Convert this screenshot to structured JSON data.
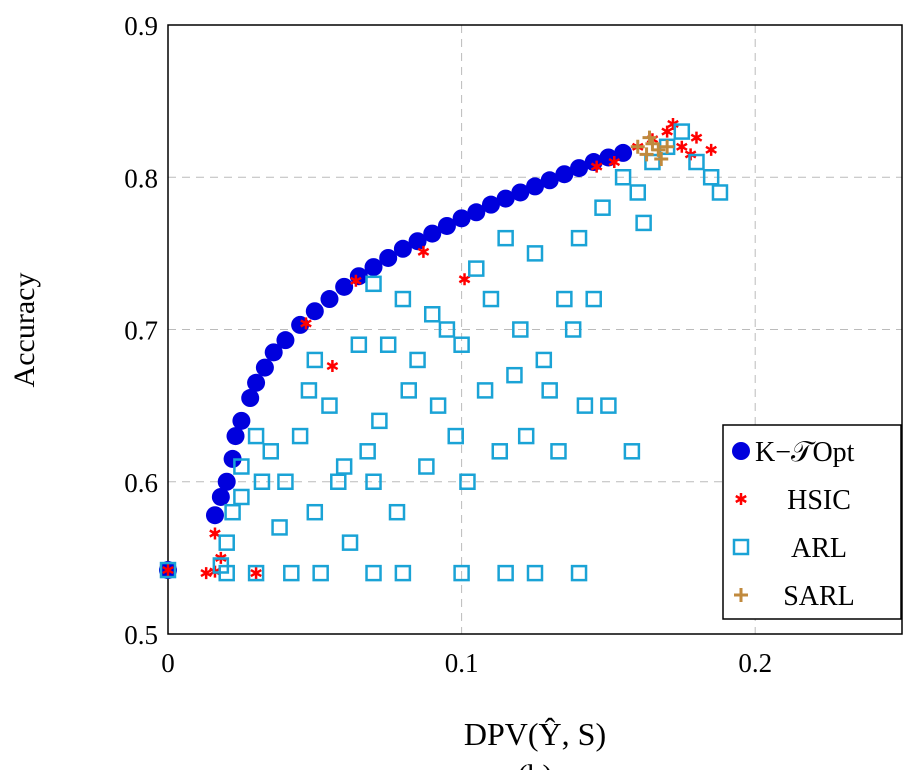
{
  "chart_data": {
    "type": "scatter",
    "ylabel": "Accuracy",
    "xlabel": "DPV(Ŷ, S)",
    "caption": "(b)",
    "xlim": [
      0,
      0.25
    ],
    "ylim": [
      0.5,
      0.9
    ],
    "xticks": [
      0,
      0.1,
      0.2
    ],
    "yticks": [
      0.5,
      0.6,
      0.7,
      0.8,
      0.9
    ],
    "grid": true,
    "legend": "lower right",
    "series": [
      {
        "name": "K−𝒯Opt",
        "color": "#0000dd",
        "marker": "circle",
        "x": [
          0.0,
          0.016,
          0.018,
          0.02,
          0.022,
          0.023,
          0.025,
          0.028,
          0.03,
          0.033,
          0.036,
          0.04,
          0.045,
          0.05,
          0.055,
          0.06,
          0.065,
          0.07,
          0.075,
          0.08,
          0.085,
          0.09,
          0.095,
          0.1,
          0.105,
          0.11,
          0.115,
          0.12,
          0.125,
          0.13,
          0.135,
          0.14,
          0.145,
          0.15,
          0.155
        ],
        "values": [
          0.542,
          0.578,
          0.59,
          0.6,
          0.615,
          0.63,
          0.64,
          0.655,
          0.665,
          0.675,
          0.685,
          0.693,
          0.703,
          0.712,
          0.72,
          0.728,
          0.735,
          0.741,
          0.747,
          0.753,
          0.758,
          0.763,
          0.768,
          0.773,
          0.777,
          0.782,
          0.786,
          0.79,
          0.794,
          0.798,
          0.802,
          0.806,
          0.81,
          0.813,
          0.816
        ]
      },
      {
        "name": "HSIC",
        "color": "#ff0000",
        "marker": "star",
        "x": [
          0.0,
          0.013,
          0.016,
          0.016,
          0.018,
          0.03,
          0.047,
          0.056,
          0.064,
          0.087,
          0.101,
          0.146,
          0.152,
          0.16,
          0.165,
          0.17,
          0.175,
          0.18,
          0.185,
          0.172,
          0.178
        ],
        "values": [
          0.542,
          0.54,
          0.541,
          0.566,
          0.55,
          0.54,
          0.704,
          0.676,
          0.732,
          0.751,
          0.733,
          0.807,
          0.81,
          0.82,
          0.825,
          0.83,
          0.82,
          0.826,
          0.818,
          0.835,
          0.815
        ]
      },
      {
        "name": "ARL",
        "color": "#1aa3d6",
        "marker": "square",
        "x": [
          0.0,
          0.018,
          0.02,
          0.022,
          0.025,
          0.025,
          0.03,
          0.032,
          0.035,
          0.038,
          0.04,
          0.042,
          0.045,
          0.048,
          0.05,
          0.05,
          0.052,
          0.055,
          0.058,
          0.06,
          0.062,
          0.065,
          0.068,
          0.07,
          0.07,
          0.072,
          0.075,
          0.078,
          0.08,
          0.082,
          0.085,
          0.088,
          0.09,
          0.092,
          0.095,
          0.098,
          0.1,
          0.102,
          0.105,
          0.108,
          0.11,
          0.113,
          0.115,
          0.118,
          0.12,
          0.122,
          0.125,
          0.128,
          0.13,
          0.133,
          0.135,
          0.138,
          0.14,
          0.142,
          0.145,
          0.148,
          0.15,
          0.155,
          0.158,
          0.16,
          0.162,
          0.165,
          0.17,
          0.175,
          0.18,
          0.185,
          0.188,
          0.07,
          0.08,
          0.1,
          0.115,
          0.125,
          0.14,
          0.02,
          0.03
        ],
        "values": [
          0.542,
          0.545,
          0.56,
          0.58,
          0.59,
          0.61,
          0.63,
          0.6,
          0.62,
          0.57,
          0.6,
          0.54,
          0.63,
          0.66,
          0.58,
          0.68,
          0.54,
          0.65,
          0.6,
          0.61,
          0.56,
          0.69,
          0.62,
          0.6,
          0.73,
          0.64,
          0.69,
          0.58,
          0.72,
          0.66,
          0.68,
          0.61,
          0.71,
          0.65,
          0.7,
          0.63,
          0.69,
          0.6,
          0.74,
          0.66,
          0.72,
          0.62,
          0.76,
          0.67,
          0.7,
          0.63,
          0.75,
          0.68,
          0.66,
          0.62,
          0.72,
          0.7,
          0.76,
          0.65,
          0.72,
          0.78,
          0.65,
          0.8,
          0.62,
          0.79,
          0.77,
          0.81,
          0.82,
          0.83,
          0.81,
          0.8,
          0.79,
          0.54,
          0.54,
          0.54,
          0.54,
          0.54,
          0.54,
          0.54,
          0.54
        ]
      },
      {
        "name": "SARL",
        "color": "#c08a3e",
        "marker": "plus",
        "x": [
          0.16,
          0.163,
          0.165,
          0.167,
          0.17,
          0.164,
          0.168
        ],
        "values": [
          0.82,
          0.815,
          0.822,
          0.818,
          0.82,
          0.826,
          0.812
        ]
      }
    ]
  }
}
